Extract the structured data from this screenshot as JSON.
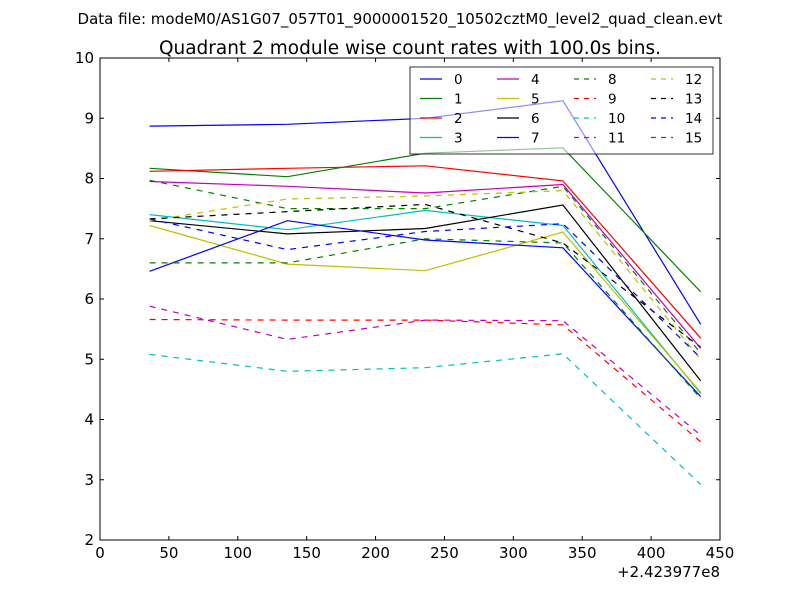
{
  "chart_data": {
    "type": "line",
    "suptitle": "Data file: modeM0/AS1G07_057T01_9000001520_10502cztM0_level2_quad_clean.evt",
    "title": "Quadrant 2 module wise count rates with 100.0s bins.",
    "xlabel": "",
    "ylabel": "",
    "xlim": [
      0,
      450
    ],
    "ylim": [
      2,
      10
    ],
    "x_offset_label": "+2.423977e8",
    "xticks": [
      0,
      50,
      100,
      150,
      200,
      250,
      300,
      350,
      400,
      450
    ],
    "yticks": [
      2,
      3,
      4,
      5,
      6,
      7,
      8,
      9,
      10
    ],
    "grid": false,
    "legend_placement": "top-right",
    "legend_columns": 4,
    "x": [
      36,
      136,
      236,
      336,
      436
    ],
    "series": [
      {
        "name": "0",
        "color": "#0000ff",
        "style": "solid",
        "values": [
          8.87,
          8.9,
          9.0,
          9.29,
          5.58
        ]
      },
      {
        "name": "1",
        "color": "#008000",
        "style": "solid",
        "values": [
          8.17,
          8.03,
          8.42,
          8.51,
          6.12
        ]
      },
      {
        "name": "2",
        "color": "#ff0000",
        "style": "solid",
        "values": [
          8.12,
          8.17,
          8.21,
          7.96,
          5.35
        ]
      },
      {
        "name": "3",
        "color": "#00bfbf",
        "style": "solid",
        "values": [
          7.4,
          7.15,
          7.47,
          7.22,
          4.43
        ]
      },
      {
        "name": "4",
        "color": "#bf00bf",
        "style": "solid",
        "values": [
          7.95,
          7.87,
          7.76,
          7.9,
          5.18
        ]
      },
      {
        "name": "5",
        "color": "#bfbf00",
        "style": "solid",
        "values": [
          7.22,
          6.58,
          6.47,
          7.11,
          4.45
        ]
      },
      {
        "name": "6",
        "color": "#000000",
        "style": "solid",
        "values": [
          7.3,
          7.08,
          7.17,
          7.56,
          4.64
        ]
      },
      {
        "name": "7",
        "color": "#0000ff",
        "style": "solid",
        "values": [
          6.46,
          7.3,
          6.98,
          6.85,
          4.38
        ]
      },
      {
        "name": "8",
        "color": "#008000",
        "style": "dashed",
        "values": [
          7.97,
          7.5,
          7.5,
          7.87,
          5.1
        ]
      },
      {
        "name": "9",
        "color": "#ff0000",
        "style": "dashed",
        "values": [
          5.66,
          5.65,
          5.65,
          5.57,
          3.63
        ]
      },
      {
        "name": "10",
        "color": "#00bfbf",
        "style": "dashed",
        "values": [
          5.08,
          4.8,
          4.86,
          5.09,
          2.92
        ]
      },
      {
        "name": "11",
        "color": "#bf00bf",
        "style": "dashed",
        "values": [
          5.88,
          5.33,
          5.65,
          5.64,
          3.74
        ]
      },
      {
        "name": "12",
        "color": "#bfbf00",
        "style": "dashed",
        "values": [
          7.3,
          7.66,
          7.71,
          7.8,
          5.0
        ]
      },
      {
        "name": "13",
        "color": "#000000",
        "style": "dashed",
        "values": [
          7.33,
          7.45,
          7.57,
          6.93,
          5.2
        ]
      },
      {
        "name": "14",
        "color": "#0000ff",
        "style": "dashed",
        "values": [
          7.33,
          6.82,
          7.12,
          7.25,
          5.02
        ]
      },
      {
        "name": "15",
        "color": "#008000",
        "style": "dashed",
        "values": [
          6.6,
          6.6,
          7.0,
          6.93,
          4.35
        ]
      }
    ]
  }
}
